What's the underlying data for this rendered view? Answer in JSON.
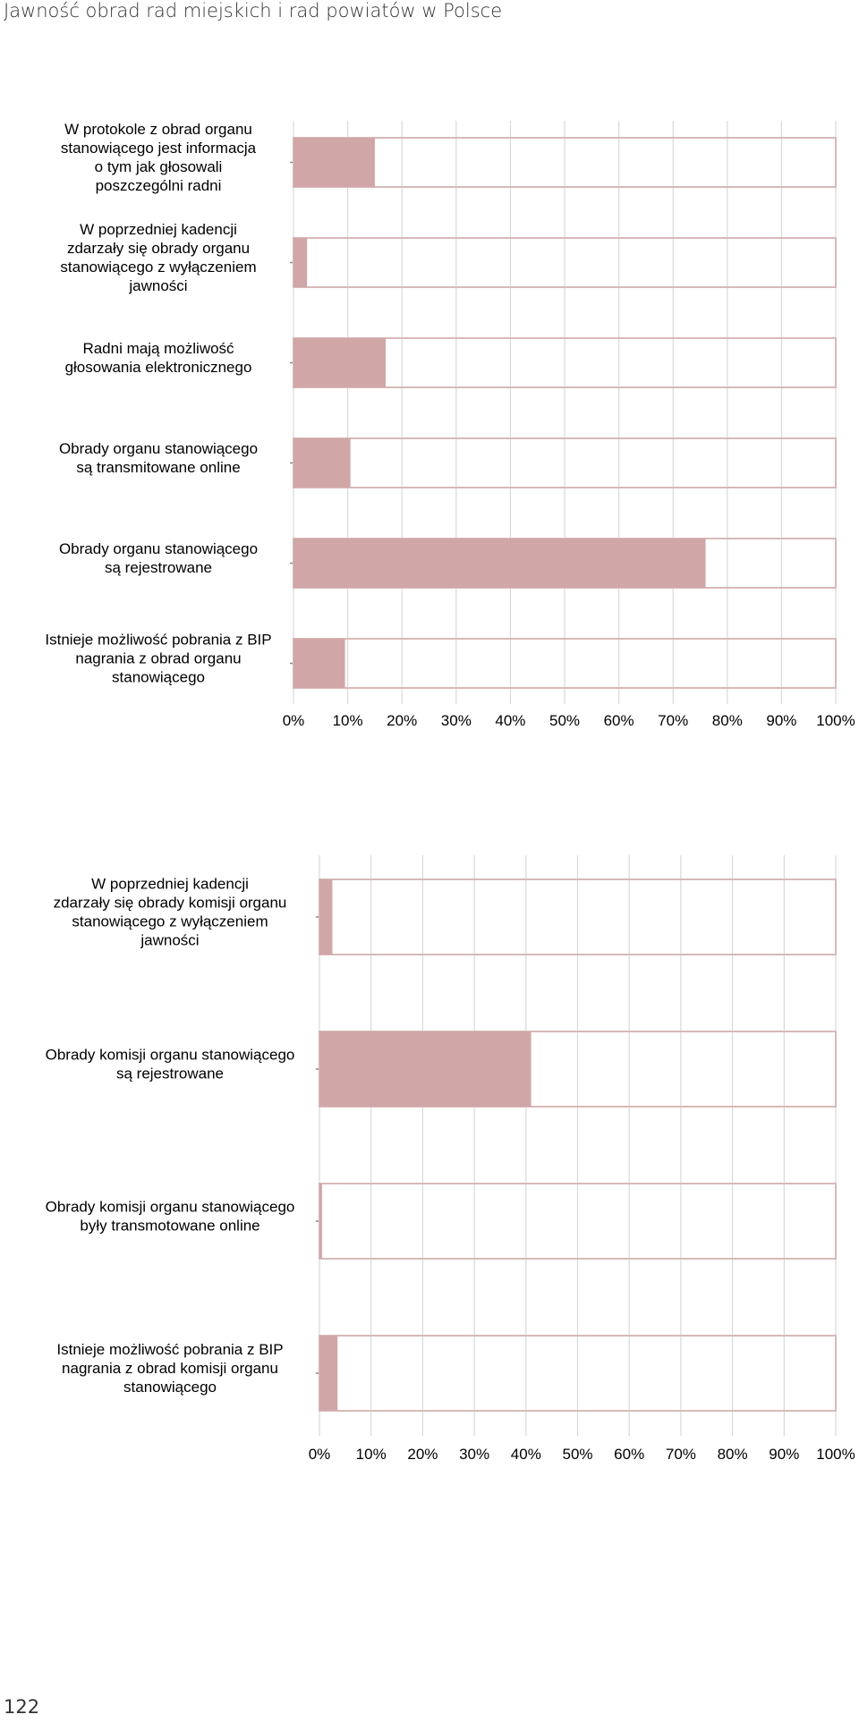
{
  "header": {
    "title": "Jawność obrad rad miejskich i rad powiatów w Polsce"
  },
  "footer": {
    "page_number": "122"
  },
  "colors": {
    "bar_fill": "#d1a6a6",
    "bar_border": "#d8b9b9",
    "grid": "#d9d9d9"
  },
  "chart_data": [
    {
      "type": "bar",
      "orientation": "horizontal",
      "title": "",
      "xlabel": "",
      "ylabel": "",
      "xlim": [
        0,
        100
      ],
      "ticks": [
        "0%",
        "10%",
        "20%",
        "30%",
        "40%",
        "50%",
        "60%",
        "70%",
        "80%",
        "90%",
        "100%"
      ],
      "categories": [
        [
          "W protokole z obrad organu",
          "stanowiącego jest informacja",
          "o tym jak głosowali",
          "poszczególni radni"
        ],
        [
          "W poprzedniej kadencji",
          "zdarzały się obrady organu",
          "stanowiącego z wyłączeniem",
          "jawności"
        ],
        [
          "Radni mają możliwość",
          "głosowania elektronicznego"
        ],
        [
          "Obrady organu stanowiącego",
          "są transmitowane online"
        ],
        [
          "Obrady organu stanowiącego",
          "są rejestrowane"
        ],
        [
          "Istnieje możliwość pobrania z BIP",
          "nagrania z obrad organu",
          "stanowiącego"
        ]
      ],
      "values": [
        15,
        2.5,
        17,
        10.5,
        76,
        9.5
      ],
      "grid": true
    },
    {
      "type": "bar",
      "orientation": "horizontal",
      "title": "",
      "xlabel": "",
      "ylabel": "",
      "xlim": [
        0,
        100
      ],
      "ticks": [
        "0%",
        "10%",
        "20%",
        "30%",
        "40%",
        "50%",
        "60%",
        "70%",
        "80%",
        "90%",
        "100%"
      ],
      "categories": [
        [
          "W poprzedniej kadencji",
          "zdarzały się obrady komisji organu",
          "stanowiącego z wyłączeniem",
          "jawności"
        ],
        [
          "Obrady komisji organu stanowiącego",
          "są rejestrowane"
        ],
        [
          "Obrady komisji organu stanowiącego",
          "były transmotowane online"
        ],
        [
          "Istnieje możliwość pobrania z BIP",
          "nagrania z obrad komisji organu",
          "stanowiącego"
        ]
      ],
      "values": [
        2.5,
        41,
        0.5,
        3.5
      ],
      "grid": true
    }
  ]
}
